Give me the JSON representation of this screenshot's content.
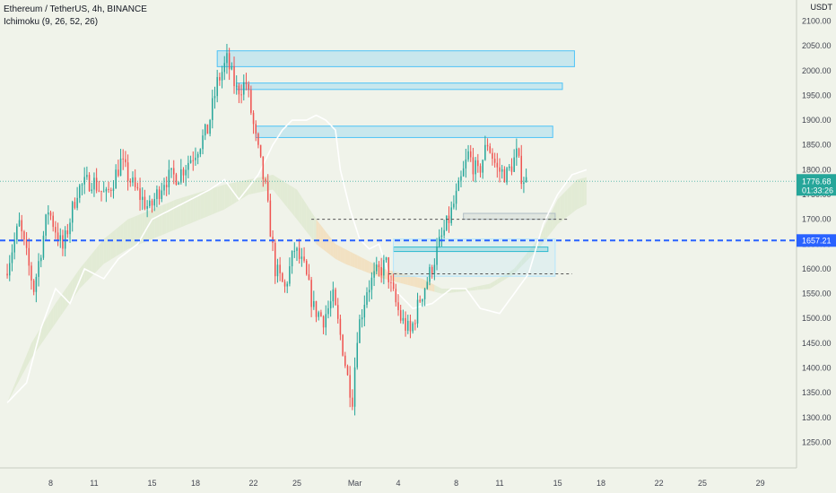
{
  "header": {
    "symbol_line": "Ethereum / TetherUS, 4h, BINANCE",
    "indicator_line": "Ichimoku (9, 26, 52, 26)"
  },
  "chart_data": {
    "type": "candlestick",
    "currency_label": "USDT",
    "y_ticks": [
      2100,
      2050,
      2000,
      1950,
      1900,
      1850,
      1800,
      1750,
      1700,
      1650,
      1600,
      1550,
      1500,
      1450,
      1400,
      1350,
      1300,
      1250
    ],
    "y_tick_labels": [
      "2100.00",
      "2050.00",
      "2000.00",
      "1950.00",
      "1900.00",
      "1850.00",
      "1800.00",
      "1750.00",
      "1700.00",
      "1650.00",
      "1600.00",
      "1550.00",
      "1500.00",
      "1450.00",
      "1400.00",
      "1350.00",
      "1300.00",
      "1250.00"
    ],
    "ylim": [
      1220,
      2110
    ],
    "x_ticks": [
      {
        "label": "8",
        "index": 18
      },
      {
        "label": "11",
        "index": 36
      },
      {
        "label": "15",
        "index": 60
      },
      {
        "label": "18",
        "index": 78
      },
      {
        "label": "22",
        "index": 102
      },
      {
        "label": "25",
        "index": 120
      },
      {
        "label": "Mar",
        "index": 144
      },
      {
        "label": "4",
        "index": 162
      },
      {
        "label": "8",
        "index": 186
      },
      {
        "label": "11",
        "index": 204
      },
      {
        "label": "15",
        "index": 228
      },
      {
        "label": "18",
        "index": 246
      },
      {
        "label": "22",
        "index": 270
      },
      {
        "label": "25",
        "index": 288
      },
      {
        "label": "29",
        "index": 312
      }
    ],
    "x_range": [
      -3,
      327
    ],
    "candle_count": 216,
    "last_price": {
      "value": 1776.68,
      "label": "1776.68",
      "countdown": "01:33:26",
      "color": "#26a69a"
    },
    "horizontal_line": {
      "value": 1657.21,
      "label": "1657.21",
      "color": "#2962ff"
    },
    "dotted_lines": [
      {
        "value": 1700,
        "from": 126,
        "to": 232
      },
      {
        "value": 1590,
        "from": 158,
        "to": 234
      }
    ],
    "zones": [
      {
        "from": 87,
        "to": 235,
        "high": 2040,
        "low": 2008,
        "color": "#4fc3f7"
      },
      {
        "from": 95,
        "to": 230,
        "high": 1975,
        "low": 1962,
        "color": "#4fc3f7"
      },
      {
        "from": 103,
        "to": 226,
        "high": 1888,
        "low": 1865,
        "color": "#4fc3f7"
      },
      {
        "from": 160,
        "to": 224,
        "high": 1644,
        "low": 1635,
        "color": "#00acc1"
      },
      {
        "from": 189,
        "to": 227,
        "high": 1712,
        "low": 1700,
        "color": "#b0bec5"
      },
      {
        "from": 160,
        "to": 227,
        "high": 1660,
        "low": 1585,
        "color": "#b3e5fc"
      }
    ],
    "colors": {
      "up": "#26a69a",
      "down": "#ef5350",
      "cloud_bull": "#dfe9cf",
      "cloud_bear": "#f3dcb8",
      "leading_line": "#ffffff",
      "background": "#f0f3ea"
    },
    "series": [
      {
        "name": "close",
        "anchors": [
          [
            0,
            1590
          ],
          [
            6,
            1690
          ],
          [
            12,
            1560
          ],
          [
            18,
            1720
          ],
          [
            24,
            1640
          ],
          [
            30,
            1760
          ],
          [
            36,
            1780
          ],
          [
            42,
            1745
          ],
          [
            48,
            1815
          ],
          [
            54,
            1760
          ],
          [
            60,
            1720
          ],
          [
            66,
            1780
          ],
          [
            72,
            1790
          ],
          [
            78,
            1830
          ],
          [
            84,
            1880
          ],
          [
            88,
            1975
          ],
          [
            92,
            2020
          ],
          [
            96,
            1960
          ],
          [
            100,
            1975
          ],
          [
            104,
            1860
          ],
          [
            108,
            1760
          ],
          [
            112,
            1600
          ],
          [
            116,
            1560
          ],
          [
            120,
            1640
          ],
          [
            124,
            1600
          ],
          [
            128,
            1520
          ],
          [
            132,
            1500
          ],
          [
            136,
            1540
          ],
          [
            140,
            1440
          ],
          [
            142,
            1380
          ],
          [
            144,
            1340
          ],
          [
            146,
            1470
          ],
          [
            150,
            1560
          ],
          [
            154,
            1590
          ],
          [
            158,
            1610
          ],
          [
            160,
            1560
          ],
          [
            164,
            1500
          ],
          [
            168,
            1470
          ],
          [
            172,
            1540
          ],
          [
            176,
            1590
          ],
          [
            180,
            1650
          ],
          [
            184,
            1700
          ],
          [
            188,
            1760
          ],
          [
            192,
            1830
          ],
          [
            196,
            1790
          ],
          [
            200,
            1855
          ],
          [
            204,
            1800
          ],
          [
            208,
            1790
          ],
          [
            212,
            1830
          ],
          [
            214,
            1790
          ],
          [
            216,
            1776.68
          ]
        ]
      },
      {
        "name": "cloud_upper",
        "anchors": [
          [
            0,
            1330
          ],
          [
            10,
            1450
          ],
          [
            20,
            1530
          ],
          [
            30,
            1600
          ],
          [
            40,
            1660
          ],
          [
            50,
            1700
          ],
          [
            60,
            1720
          ],
          [
            70,
            1740
          ],
          [
            80,
            1755
          ],
          [
            90,
            1770
          ],
          [
            100,
            1780
          ],
          [
            110,
            1790
          ],
          [
            120,
            1760
          ],
          [
            128,
            1700
          ],
          [
            136,
            1650
          ],
          [
            140,
            1640
          ],
          [
            148,
            1620
          ],
          [
            156,
            1600
          ],
          [
            164,
            1590
          ],
          [
            172,
            1580
          ],
          [
            180,
            1560
          ],
          [
            190,
            1560
          ],
          [
            200,
            1570
          ],
          [
            210,
            1600
          ],
          [
            220,
            1660
          ],
          [
            228,
            1740
          ],
          [
            236,
            1780
          ],
          [
            240,
            1785
          ]
        ]
      },
      {
        "name": "cloud_lower",
        "anchors": [
          [
            0,
            1330
          ],
          [
            10,
            1420
          ],
          [
            20,
            1490
          ],
          [
            30,
            1560
          ],
          [
            40,
            1610
          ],
          [
            50,
            1640
          ],
          [
            60,
            1660
          ],
          [
            70,
            1680
          ],
          [
            80,
            1700
          ],
          [
            90,
            1720
          ],
          [
            100,
            1750
          ],
          [
            110,
            1760
          ],
          [
            120,
            1700
          ],
          [
            128,
            1650
          ],
          [
            136,
            1620
          ],
          [
            140,
            1610
          ],
          [
            148,
            1595
          ],
          [
            156,
            1580
          ],
          [
            164,
            1570
          ],
          [
            172,
            1560
          ],
          [
            180,
            1550
          ],
          [
            190,
            1555
          ],
          [
            200,
            1560
          ],
          [
            210,
            1590
          ],
          [
            220,
            1640
          ],
          [
            228,
            1690
          ],
          [
            236,
            1720
          ],
          [
            240,
            1730
          ]
        ]
      },
      {
        "name": "leading_line",
        "anchors": [
          [
            0,
            1330
          ],
          [
            8,
            1370
          ],
          [
            14,
            1480
          ],
          [
            20,
            1560
          ],
          [
            26,
            1530
          ],
          [
            32,
            1600
          ],
          [
            40,
            1580
          ],
          [
            46,
            1620
          ],
          [
            54,
            1650
          ],
          [
            60,
            1700
          ],
          [
            68,
            1720
          ],
          [
            76,
            1740
          ],
          [
            84,
            1760
          ],
          [
            90,
            1780
          ],
          [
            96,
            1740
          ],
          [
            104,
            1790
          ],
          [
            110,
            1850
          ],
          [
            114,
            1880
          ],
          [
            118,
            1900
          ],
          [
            124,
            1900
          ],
          [
            128,
            1910
          ],
          [
            132,
            1900
          ],
          [
            136,
            1880
          ],
          [
            138,
            1800
          ],
          [
            142,
            1720
          ],
          [
            146,
            1660
          ],
          [
            150,
            1640
          ],
          [
            154,
            1650
          ],
          [
            160,
            1560
          ],
          [
            168,
            1520
          ],
          [
            176,
            1530
          ],
          [
            184,
            1560
          ],
          [
            190,
            1560
          ],
          [
            196,
            1520
          ],
          [
            204,
            1510
          ],
          [
            210,
            1550
          ],
          [
            216,
            1590
          ],
          [
            222,
            1690
          ],
          [
            228,
            1750
          ],
          [
            234,
            1790
          ],
          [
            240,
            1800
          ]
        ]
      }
    ]
  }
}
